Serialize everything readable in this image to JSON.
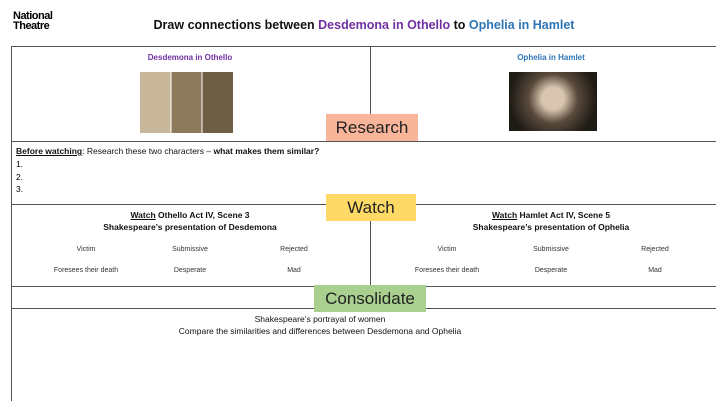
{
  "logo": [
    "National",
    "Theatre"
  ],
  "title": [
    "Draw connections between ",
    "Desdemona in Othello",
    " to ",
    "Ophelia in Hamlet"
  ],
  "characters": [
    "Desdemona in Othello",
    "Ophelia in Hamlet"
  ],
  "stages": [
    "Research",
    "Watch",
    "Consolidate"
  ],
  "research": {
    "prompt": [
      "Before watching",
      ": Research these two characters – ",
      "what makes them similar?"
    ],
    "items": [
      "1.",
      "2.",
      "3."
    ]
  },
  "watch": [
    {
      "action": "Watch",
      "scene": " Othello Act IV, Scene 3",
      "heading": "Shakespeare’s presentation of Desdemona",
      "words": [
        "Victim",
        "Submissive",
        "Rejected",
        "Foresees their death",
        "Desperate",
        "Mad"
      ]
    },
    {
      "action": "Watch",
      "scene": " Hamlet Act IV, Scene 5",
      "heading": "Shakespeare’s presentation of Ophelia",
      "words": [
        "Victim",
        "Submissive",
        "Rejected",
        "Foresees their death",
        "Desperate",
        "Mad"
      ]
    }
  ],
  "consolidate": [
    "Shakespeare’s portrayal of women",
    "Compare the similarities and differences between Desdemona and Ophelia"
  ]
}
